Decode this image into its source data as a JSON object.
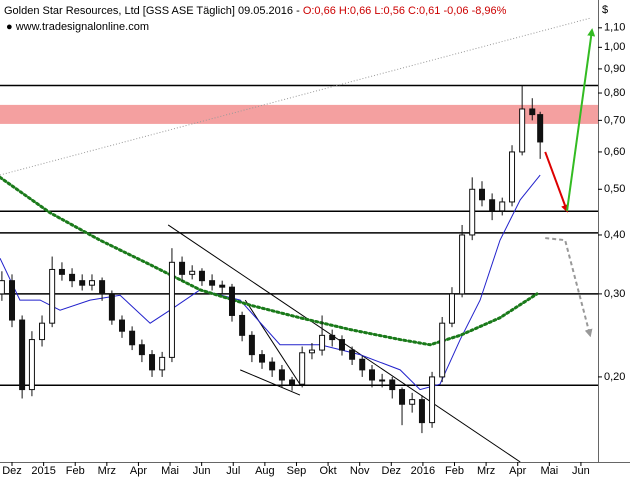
{
  "chart_data": {
    "type": "candlestick",
    "title": "Golden Star Resources, Ltd [GSS ASE  Täglich] 09.05.2016 -",
    "quote": "O:0,66 H:0,66 L:0,56 C:0,61 -0,06 -8,96%",
    "quote_color": "#cc0000",
    "source": "www.tradesignalonline.com",
    "y_axis_label": "$",
    "log_scale": true,
    "xlim": [
      -0.38,
      18.54
    ],
    "ylim": [
      0.132,
      1.26
    ],
    "xticks": [
      {
        "value": 0,
        "label": "Dez"
      },
      {
        "value": 1,
        "label": "2015"
      },
      {
        "value": 2,
        "label": "Feb"
      },
      {
        "value": 3,
        "label": "Mrz"
      },
      {
        "value": 4,
        "label": "Apr"
      },
      {
        "value": 5,
        "label": "Mai"
      },
      {
        "value": 6,
        "label": "Jun"
      },
      {
        "value": 7,
        "label": "Jul"
      },
      {
        "value": 8,
        "label": "Aug"
      },
      {
        "value": 9,
        "label": "Sep"
      },
      {
        "value": 10,
        "label": "Okt"
      },
      {
        "value": 11,
        "label": "Nov"
      },
      {
        "value": 12,
        "label": "Dez"
      },
      {
        "value": 13,
        "label": "2016"
      },
      {
        "value": 14,
        "label": "Feb"
      },
      {
        "value": 15,
        "label": "Mrz"
      },
      {
        "value": 16,
        "label": "Apr"
      },
      {
        "value": 17,
        "label": "Mai"
      },
      {
        "value": 18,
        "label": "Jun"
      }
    ],
    "yticks": [
      {
        "value": 1.1,
        "label": "1,10"
      },
      {
        "value": 1.0,
        "label": "1,00"
      },
      {
        "value": 0.9,
        "label": "0,90"
      },
      {
        "value": 0.8,
        "label": "0,80"
      },
      {
        "value": 0.7,
        "label": "0,70"
      },
      {
        "value": 0.6,
        "label": "0,60"
      },
      {
        "value": 0.5,
        "label": "0,50"
      },
      {
        "value": 0.4,
        "label": "0,40"
      },
      {
        "value": 0.3,
        "label": "0,30"
      },
      {
        "value": 0.2,
        "label": "0,20"
      }
    ],
    "candle_color": "#111111",
    "x": [
      -0.32,
      0,
      0.32,
      0.63,
      0.95,
      1.27,
      1.58,
      1.9,
      2.22,
      2.53,
      2.85,
      3.16,
      3.48,
      3.8,
      4.11,
      4.43,
      4.75,
      5.06,
      5.38,
      5.7,
      6.01,
      6.33,
      6.65,
      6.96,
      7.28,
      7.59,
      7.91,
      8.23,
      8.54,
      8.86,
      9.18,
      9.49,
      9.81,
      10.13,
      10.44,
      10.76,
      11.08,
      11.39,
      11.71,
      12.03,
      12.34,
      12.66,
      12.97,
      13.29,
      13.61,
      13.92,
      14.24,
      14.56,
      14.87,
      15.19,
      15.51,
      15.82,
      16.14,
      16.46,
      16.71
    ],
    "open": [
      0.3,
      0.32,
      0.264,
      0.188,
      0.24,
      0.26,
      0.338,
      0.33,
      0.32,
      0.313,
      0.32,
      0.3,
      0.264,
      0.25,
      0.234,
      0.223,
      0.207,
      0.22,
      0.35,
      0.33,
      0.335,
      0.32,
      0.313,
      0.31,
      0.27,
      0.245,
      0.223,
      0.215,
      0.207,
      0.197,
      0.193,
      0.225,
      0.228,
      0.245,
      0.24,
      0.228,
      0.218,
      0.207,
      0.197,
      0.197,
      0.188,
      0.175,
      0.179,
      0.16,
      0.2,
      0.26,
      0.3,
      0.4,
      0.5,
      0.475,
      0.45,
      0.47,
      0.6,
      0.74,
      0.72
    ],
    "high": [
      0.335,
      0.33,
      0.27,
      0.25,
      0.27,
      0.36,
      0.35,
      0.34,
      0.33,
      0.33,
      0.325,
      0.305,
      0.27,
      0.256,
      0.24,
      0.228,
      0.226,
      0.375,
      0.36,
      0.345,
      0.34,
      0.33,
      0.32,
      0.315,
      0.275,
      0.25,
      0.228,
      0.22,
      0.212,
      0.2,
      0.232,
      0.236,
      0.27,
      0.252,
      0.245,
      0.232,
      0.222,
      0.212,
      0.203,
      0.2,
      0.19,
      0.185,
      0.183,
      0.205,
      0.268,
      0.31,
      0.42,
      0.53,
      0.52,
      0.49,
      0.48,
      0.62,
      0.83,
      0.78,
      0.73
    ],
    "low": [
      0.29,
      0.255,
      0.18,
      0.182,
      0.232,
      0.255,
      0.32,
      0.31,
      0.305,
      0.305,
      0.29,
      0.258,
      0.242,
      0.228,
      0.215,
      0.2,
      0.2,
      0.215,
      0.32,
      0.322,
      0.312,
      0.305,
      0.3,
      0.262,
      0.238,
      0.215,
      0.208,
      0.2,
      0.19,
      0.187,
      0.19,
      0.218,
      0.222,
      0.232,
      0.222,
      0.212,
      0.2,
      0.19,
      0.19,
      0.18,
      0.158,
      0.168,
      0.152,
      0.156,
      0.195,
      0.255,
      0.295,
      0.39,
      0.46,
      0.43,
      0.44,
      0.46,
      0.59,
      0.7,
      0.58
    ],
    "close": [
      0.32,
      0.264,
      0.188,
      0.24,
      0.26,
      0.338,
      0.33,
      0.32,
      0.313,
      0.32,
      0.3,
      0.264,
      0.25,
      0.234,
      0.223,
      0.207,
      0.22,
      0.35,
      0.33,
      0.335,
      0.32,
      0.313,
      0.31,
      0.27,
      0.245,
      0.223,
      0.215,
      0.207,
      0.197,
      0.193,
      0.225,
      0.228,
      0.245,
      0.24,
      0.228,
      0.218,
      0.207,
      0.197,
      0.197,
      0.188,
      0.175,
      0.179,
      0.16,
      0.2,
      0.26,
      0.3,
      0.4,
      0.5,
      0.475,
      0.45,
      0.47,
      0.6,
      0.74,
      0.72,
      0.63
    ],
    "series": [
      {
        "color": "#2222cc",
        "style": "solid",
        "x": [
          -0.38,
          0.25,
          0.89,
          1.52,
          2.47,
          3.42,
          4.37,
          5.0,
          5.95,
          7.22,
          8.48,
          9.75,
          11.01,
          12.28,
          12.91,
          13.54,
          14.18,
          14.81,
          15.44,
          16.08,
          16.71
        ],
        "values": [
          0.357,
          0.291,
          0.291,
          0.277,
          0.291,
          0.298,
          0.26,
          0.277,
          0.306,
          0.291,
          0.234,
          0.234,
          0.223,
          0.207,
          0.188,
          0.193,
          0.24,
          0.291,
          0.39,
          0.475,
          0.536
        ]
      },
      {
        "color": "#1a7a1a",
        "style": "dotted",
        "x": [
          -0.38,
          1.2,
          2.78,
          4.37,
          5.95,
          7.53,
          9.11,
          10.7,
          12.28,
          13.23,
          14.18,
          15.44,
          16.61
        ],
        "values": [
          0.53,
          0.446,
          0.39,
          0.346,
          0.306,
          0.284,
          0.267,
          0.252,
          0.24,
          0.234,
          0.245,
          0.267,
          0.3
        ]
      }
    ],
    "zone": {
      "color": "#f4a0a0",
      "values": [
        0.688,
        0.755
      ]
    },
    "levels": {
      "color": "#000000",
      "values": [
        0.83,
        0.449,
        0.404,
        0.3,
        0.192
      ]
    },
    "trendlines": [
      {
        "color": "#000000",
        "style": "solid",
        "x": [
          4.94,
          16.08
        ],
        "values": [
          0.42,
          0.132
        ]
      },
      {
        "color": "#000000",
        "style": "solid",
        "x": [
          7.22,
          9.11
        ],
        "values": [
          0.207,
          0.183
        ]
      },
      {
        "color": "#000000",
        "style": "solid",
        "x": [
          7.38,
          9.11
        ],
        "values": [
          0.291,
          0.193
        ]
      },
      {
        "color": "#999999",
        "style": "dotted",
        "x": [
          -0.38,
          18.29
        ],
        "values": [
          0.536,
          1.153
        ]
      },
      {
        "color": "#dd0000",
        "style": "arrow",
        "x": [
          16.87,
          17.56
        ],
        "values": [
          0.6,
          0.45
        ]
      },
      {
        "color": "#33bb22",
        "style": "arrow",
        "x": [
          17.56,
          18.35
        ],
        "values": [
          0.45,
          1.088
        ]
      },
      {
        "color": "#999999",
        "style": "dashed-arrow",
        "x": [
          16.87,
          17.5,
          18.29
        ],
        "values": [
          0.394,
          0.39,
          0.245
        ]
      }
    ]
  }
}
